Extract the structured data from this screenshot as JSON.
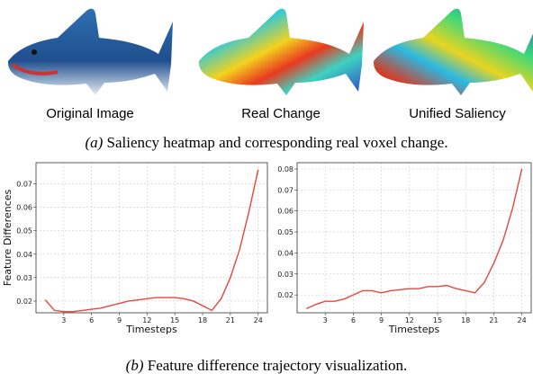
{
  "images": {
    "labels": [
      "Original Image",
      "Real Change",
      "Unified Saliency"
    ]
  },
  "caption_a": {
    "label": "(a)",
    "text": "Saliency heatmap and corresponding real voxel change."
  },
  "caption_b": {
    "label": "(b)",
    "text": "Feature difference trajectory visualization."
  },
  "chart_data": [
    {
      "type": "line",
      "x_label": "Timesteps",
      "y_label": "Feature Differences",
      "color": "#e8463f",
      "grid": true,
      "x": [
        1,
        2,
        3,
        4,
        5,
        6,
        7,
        8,
        9,
        10,
        11,
        12,
        13,
        14,
        15,
        16,
        17,
        18,
        19,
        20,
        21,
        22,
        23,
        24
      ],
      "values": [
        0.0205,
        0.016,
        0.0155,
        0.0155,
        0.016,
        0.0165,
        0.017,
        0.018,
        0.019,
        0.02,
        0.0205,
        0.021,
        0.0215,
        0.0215,
        0.0215,
        0.021,
        0.02,
        0.018,
        0.016,
        0.021,
        0.03,
        0.042,
        0.058,
        0.076
      ],
      "xlim": [
        0,
        25
      ],
      "xticks": [
        3,
        6,
        9,
        12,
        15,
        18,
        21,
        24
      ],
      "ylim": [
        0.015,
        0.079
      ],
      "yticks": [
        0.02,
        0.03,
        0.04,
        0.05,
        0.06,
        0.07
      ]
    },
    {
      "type": "line",
      "x_label": "Timesteps",
      "color": "#e8463f",
      "grid": true,
      "x": [
        1,
        2,
        3,
        4,
        5,
        6,
        7,
        8,
        9,
        10,
        11,
        12,
        13,
        14,
        15,
        16,
        17,
        18,
        19,
        20,
        21,
        22,
        23,
        24
      ],
      "values": [
        0.0135,
        0.0155,
        0.017,
        0.017,
        0.018,
        0.02,
        0.022,
        0.022,
        0.021,
        0.022,
        0.0225,
        0.023,
        0.023,
        0.024,
        0.024,
        0.0245,
        0.023,
        0.022,
        0.021,
        0.026,
        0.035,
        0.046,
        0.061,
        0.08
      ],
      "xlim": [
        0,
        25
      ],
      "xticks": [
        3,
        6,
        9,
        12,
        15,
        18,
        21,
        24
      ],
      "ylim": [
        0.0115,
        0.083
      ],
      "yticks": [
        0.02,
        0.03,
        0.04,
        0.05,
        0.06,
        0.07,
        0.08
      ]
    }
  ]
}
